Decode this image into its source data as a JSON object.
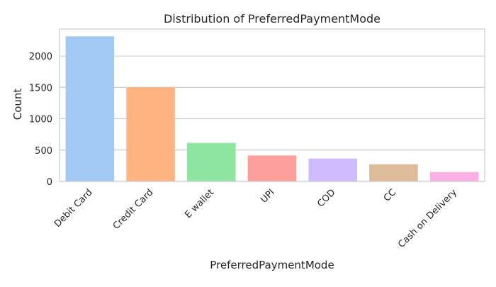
{
  "chart_data": {
    "type": "bar",
    "title": "Distribution of PreferredPaymentMode",
    "xlabel": "PreferredPaymentMode",
    "ylabel": "Count",
    "categories": [
      "Debit Card",
      "Credit Card",
      "E wallet",
      "UPI",
      "COD",
      "CC",
      "Cash on Delivery"
    ],
    "values": [
      2314,
      1501,
      614,
      414,
      365,
      273,
      149
    ],
    "ylim": [
      0,
      2430
    ],
    "yticks": [
      0,
      500,
      1000,
      1500,
      2000
    ],
    "grid": true,
    "legend": "none",
    "colors": [
      "#a1c9f4",
      "#ffb482",
      "#8de5a1",
      "#ff9f9b",
      "#d0bbff",
      "#debb9b",
      "#fab0e4"
    ],
    "axes_background": "#ffffff",
    "grid_color": "#cccccc",
    "frame_color": "#cccccc"
  }
}
